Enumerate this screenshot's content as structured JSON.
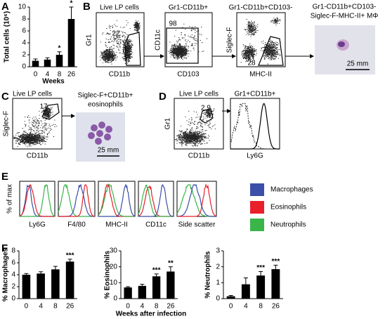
{
  "panel_labels": [
    "A",
    "B",
    "C",
    "D",
    "E",
    "F"
  ],
  "panel_B": {
    "plots": [
      {
        "title": "Live LP cells",
        "gate": 22,
        "y_axis": "Gr1",
        "x_axis": "CD11b"
      },
      {
        "title": "Gr1-CD11b+",
        "gate": 98,
        "y_axis": "CD11c",
        "x_axis": "CD103"
      },
      {
        "title": "Gr1-CD11b+CD103-",
        "gate": 28,
        "y_axis": "Siglec-F",
        "x_axis": "MHC-II"
      }
    ],
    "image_title": [
      "Gr1-CD11b+CD103-",
      "Siglec-F-MHC-II+ MΦ"
    ],
    "scale_bar": "25 mm"
  },
  "panel_C": {
    "plot": {
      "title": "Live LP cells",
      "gate": 17,
      "y_axis": "Siglec-F",
      "x_axis": "CD11b"
    },
    "image_title": [
      "Siglec-F+CD11b+",
      "eosinophils"
    ],
    "scale_bar": "25 mm"
  },
  "panel_D": {
    "plot": {
      "title": "Live LP cells",
      "gate": 2.9,
      "y_axis": "Gr1",
      "x_axis": "CD11b"
    },
    "histogram": {
      "title": "Gr1+CD11b+",
      "x_axis": "Ly6G"
    }
  },
  "panel_E": {
    "y_axis": "% of max",
    "x_axes": [
      "Ly6G",
      "F4/80",
      "MHC-II",
      "CD11c",
      "Side scatter"
    ],
    "legend": [
      {
        "name": "Macrophages",
        "color": "#3b4fa8"
      },
      {
        "name": "Eosinophils",
        "color": "#e8202a"
      },
      {
        "name": "Neutrophils",
        "color": "#39b54a"
      }
    ]
  },
  "chart_data": [
    {
      "type": "bar",
      "ylabel": "Total cells (10⁶)",
      "xlabel": "Weeks",
      "categories": [
        "0",
        "4",
        "8",
        "26"
      ],
      "values": [
        1.0,
        1.2,
        2.0,
        8.0
      ],
      "errors": [
        0.3,
        0.3,
        0.5,
        2.0
      ],
      "color": "#000000",
      "ylim": [
        0,
        10
      ],
      "yticks": [
        0,
        2,
        4,
        6,
        8,
        10
      ],
      "annotations": [
        {
          "at": "8",
          "text": "*"
        },
        {
          "at": "26",
          "text": "*"
        }
      ]
    },
    {
      "type": "bar",
      "ylabel": "% Macrophages",
      "categories": [
        "0",
        "4",
        "8",
        "26"
      ],
      "values": [
        4.0,
        4.2,
        4.9,
        6.2
      ],
      "errors": [
        0.2,
        0.3,
        0.5,
        0.4
      ],
      "color": "#000000",
      "ylim": [
        0,
        8
      ],
      "yticks": [
        0,
        2,
        4,
        6,
        8
      ],
      "annotations": [
        {
          "at": "26",
          "text": "***"
        }
      ]
    },
    {
      "type": "bar",
      "ylabel": "% Eosinophils",
      "xlabel": "Weeks after infection",
      "categories": [
        "0",
        "4",
        "8",
        "26"
      ],
      "values": [
        7,
        8,
        14,
        17
      ],
      "errors": [
        0.5,
        1,
        1.5,
        3
      ],
      "color": "#000000",
      "ylim": [
        0,
        30
      ],
      "yticks": [
        0,
        10,
        20,
        30
      ],
      "annotations": [
        {
          "at": "8",
          "text": "***"
        },
        {
          "at": "26",
          "text": "**"
        }
      ]
    },
    {
      "type": "bar",
      "ylabel": "% Neutrophils",
      "categories": [
        "0",
        "4",
        "8",
        "26"
      ],
      "values": [
        0.15,
        0.9,
        1.45,
        1.85
      ],
      "errors": [
        0.05,
        0.4,
        0.25,
        0.25
      ],
      "color": "#000000",
      "ylim": [
        0,
        3
      ],
      "yticks": [
        0,
        1,
        2,
        3
      ],
      "annotations": [
        {
          "at": "8",
          "text": "***"
        },
        {
          "at": "26",
          "text": "***"
        }
      ]
    }
  ]
}
